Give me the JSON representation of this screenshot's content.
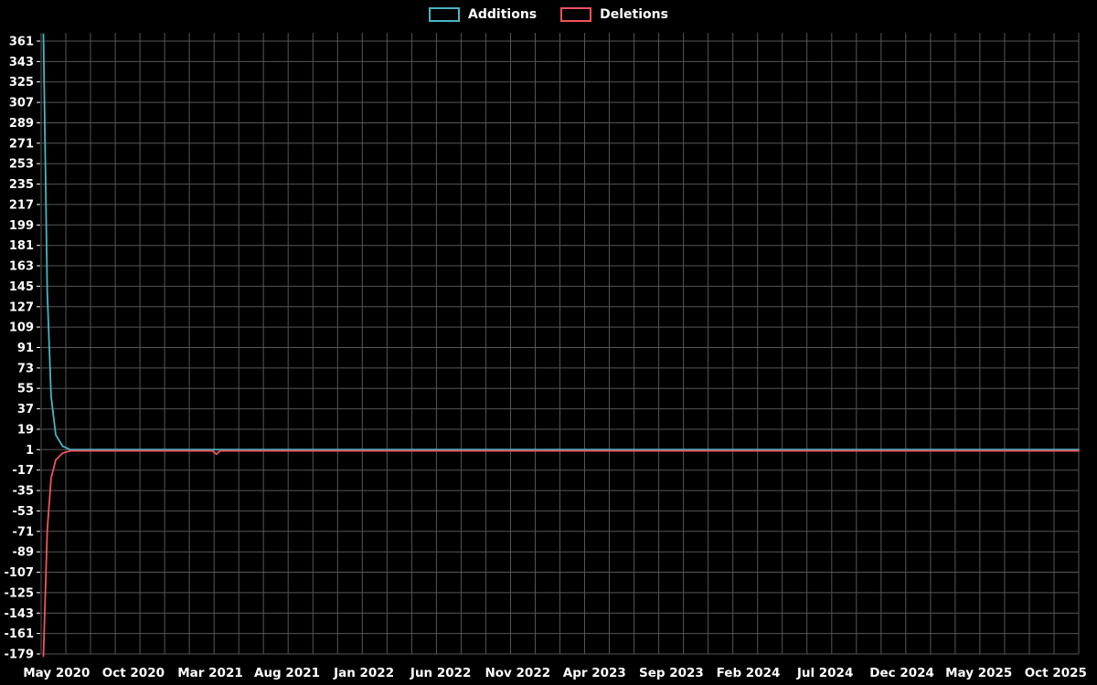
{
  "chart_data": {
    "type": "line",
    "title": "",
    "legend": [
      "Additions",
      "Deletions"
    ],
    "legend_position": "top-center",
    "background_color": "#000000",
    "text_color": "#ffffff",
    "grid_color": "#565656",
    "grid": "on",
    "x_axis": {
      "tick_labels": [
        "May 2020",
        "Oct 2020",
        "Mar 2021",
        "Aug 2021",
        "Jan 2022",
        "Jun 2022",
        "Nov 2022",
        "Apr 2023",
        "Sep 2023",
        "Feb 2024",
        "Jul 2024",
        "Dec 2024",
        "May 2025",
        "Oct 2025"
      ],
      "tick_months": [
        0,
        5,
        10,
        15,
        20,
        25,
        30,
        35,
        40,
        45,
        50,
        55,
        60,
        65
      ],
      "domain_months": [
        -1,
        66.5
      ],
      "vertical_gridline_count": 43
    },
    "y_axis": {
      "min": -179,
      "max": 361,
      "tick_step": 18,
      "ticks": [
        361,
        343,
        325,
        307,
        289,
        271,
        253,
        235,
        217,
        199,
        181,
        163,
        145,
        127,
        109,
        91,
        73,
        55,
        37,
        19,
        1,
        -17,
        -35,
        -53,
        -71,
        -89,
        -107,
        -125,
        -143,
        -161,
        -179
      ]
    },
    "series": [
      {
        "name": "Additions",
        "color": "#48b5c4",
        "points": [
          [
            -0.85,
            367
          ],
          [
            -0.6,
            140
          ],
          [
            -0.35,
            48
          ],
          [
            -0.05,
            14
          ],
          [
            0.4,
            4
          ],
          [
            0.9,
            1
          ],
          [
            66.5,
            1
          ]
        ]
      },
      {
        "name": "Deletions",
        "color": "#f2545b",
        "points": [
          [
            -0.85,
            -181
          ],
          [
            -0.6,
            -70
          ],
          [
            -0.35,
            -24
          ],
          [
            -0.05,
            -8
          ],
          [
            0.4,
            -2
          ],
          [
            0.9,
            0
          ],
          [
            10.15,
            0
          ],
          [
            10.4,
            -3
          ],
          [
            10.65,
            0
          ],
          [
            66.5,
            0
          ]
        ]
      }
    ]
  }
}
